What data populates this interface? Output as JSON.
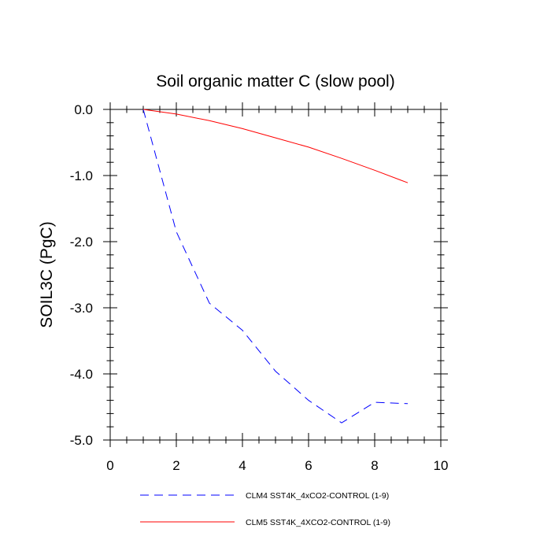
{
  "chart_data": {
    "type": "line",
    "title": "Soil organic matter C (slow pool)",
    "xlabel": "",
    "ylabel": "SOIL3C  (PgC)",
    "xlim": [
      0,
      10
    ],
    "ylim": [
      -5.0,
      0.0
    ],
    "xticks": [
      0,
      2,
      4,
      6,
      8,
      10
    ],
    "xtick_labels": [
      "0",
      "2",
      "4",
      "6",
      "8",
      "10"
    ],
    "yticks": [
      0.0,
      -1.0,
      -2.0,
      -3.0,
      -4.0,
      -5.0
    ],
    "ytick_labels": [
      "0.0",
      "-1.0",
      "-2.0",
      "-3.0",
      "-4.0",
      "-5.0"
    ],
    "grid": false,
    "legend_position": "bottom",
    "series": [
      {
        "name": "CLM4 SST4K_4xCO2-CONTROL (1-9)",
        "color": "#0000ff",
        "dash": "dashed",
        "x": [
          1,
          2,
          3,
          4,
          5,
          6,
          7,
          8,
          9
        ],
        "y": [
          0.0,
          -1.85,
          -2.93,
          -3.34,
          -3.96,
          -4.4,
          -4.74,
          -4.43,
          -4.45
        ]
      },
      {
        "name": "CLM5 SST4K_4XCO2-CONTROL (1-9)",
        "color": "#ff0000",
        "dash": "solid",
        "x": [
          1,
          2,
          3,
          4,
          5,
          6,
          7,
          8,
          9
        ],
        "y": [
          0.0,
          -0.07,
          -0.17,
          -0.29,
          -0.43,
          -0.57,
          -0.74,
          -0.92,
          -1.11
        ]
      }
    ]
  }
}
